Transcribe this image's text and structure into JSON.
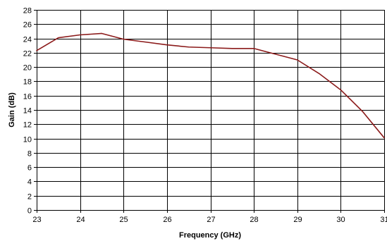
{
  "chart_data": {
    "type": "line",
    "title": "",
    "xlabel": "Frequency (GHz)",
    "ylabel": "Gain (dB)",
    "xlim": [
      23,
      31
    ],
    "ylim": [
      0,
      28
    ],
    "x_ticks": [
      23,
      24,
      25,
      26,
      27,
      28,
      29,
      30,
      31
    ],
    "y_ticks": [
      0,
      2,
      4,
      6,
      8,
      10,
      12,
      14,
      16,
      18,
      20,
      22,
      24,
      26,
      28
    ],
    "grid": true,
    "legend": "none",
    "series": [
      {
        "color": "#8b1a1a",
        "x": [
          23,
          23.5,
          24,
          24.5,
          25,
          25.5,
          26,
          26.5,
          27,
          27.5,
          28,
          28.5,
          29,
          29.5,
          30,
          30.5,
          31
        ],
        "y": [
          22.3,
          24.1,
          24.5,
          24.7,
          23.9,
          23.5,
          23.1,
          22.8,
          22.7,
          22.6,
          22.6,
          21.8,
          21.0,
          19.1,
          16.8,
          13.8,
          10.1
        ]
      }
    ]
  }
}
